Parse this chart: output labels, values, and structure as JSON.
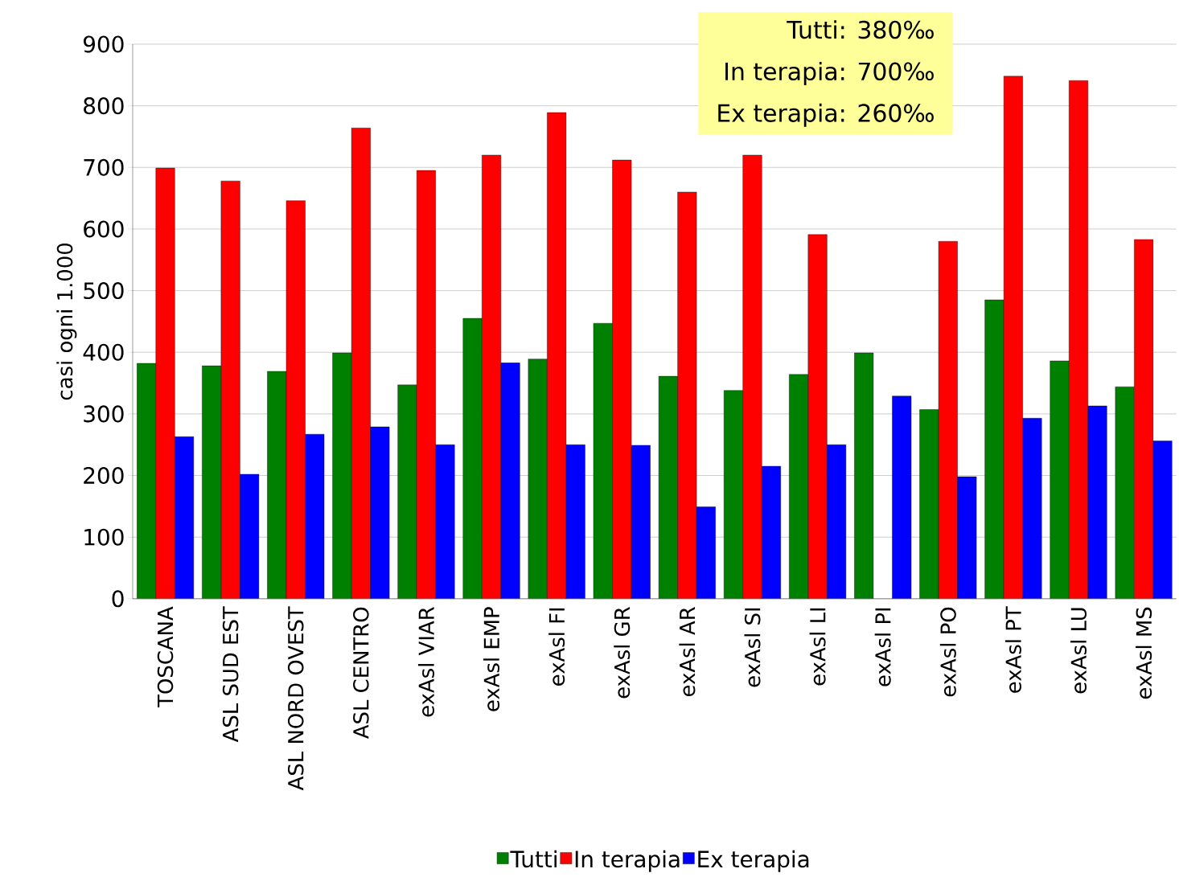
{
  "chart_data": {
    "type": "bar",
    "ylabel": "casi ogni 1.000",
    "categories": [
      "TOSCANA",
      "ASL SUD EST",
      "ASL NORD OVEST",
      "ASL CENTRO",
      "exAsl VIAR",
      "exAsl EMP",
      "exAsl FI",
      "exAsl GR",
      "exAsl AR",
      "exAsl SI",
      "exAsl LI",
      "exAsl PI",
      "exAsl PO",
      "exAsl PT",
      "exAsl LU",
      "exAsl MS"
    ],
    "series": [
      {
        "name": "Tutti",
        "color": "#008000",
        "values": [
          382,
          378,
          369,
          399,
          347,
          455,
          389,
          447,
          361,
          338,
          364,
          399,
          307,
          485,
          386,
          344
        ]
      },
      {
        "name": "In terapia",
        "color": "#ff0000",
        "values": [
          699,
          678,
          646,
          764,
          695,
          720,
          789,
          712,
          660,
          720,
          591,
          null,
          580,
          848,
          841,
          583
        ]
      },
      {
        "name": "Ex terapia",
        "color": "#0000ff",
        "values": [
          263,
          202,
          267,
          279,
          250,
          383,
          250,
          249,
          149,
          215,
          250,
          329,
          198,
          293,
          313,
          256
        ]
      }
    ],
    "ylim": [
      0,
      900
    ],
    "yticks": [
      0,
      100,
      200,
      300,
      400,
      500,
      600,
      700,
      800,
      900
    ],
    "grid": "y",
    "legend": "bottom",
    "annotations": [
      "Tutti: 380‰",
      "In terapia: 700‰",
      "Ex terapia: 260‰"
    ]
  }
}
